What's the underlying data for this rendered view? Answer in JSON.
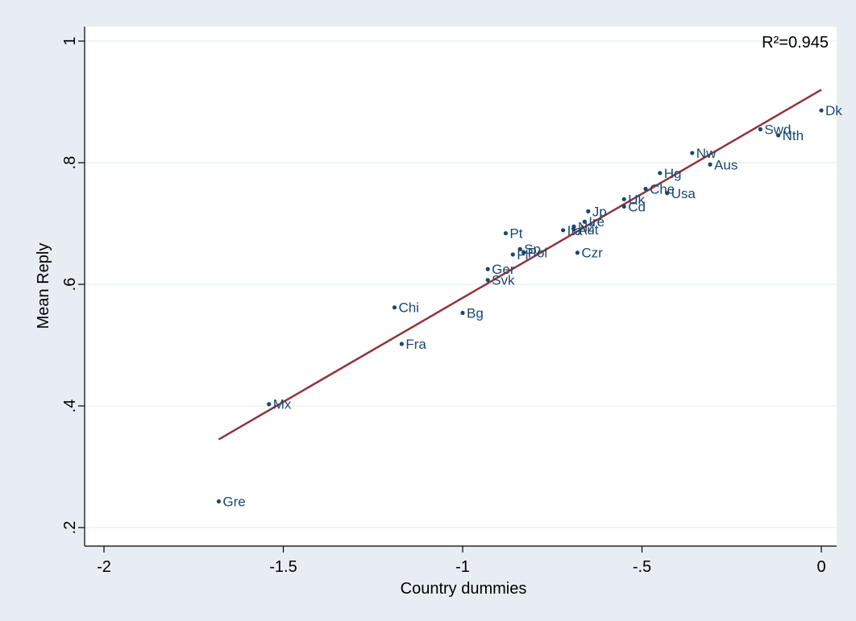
{
  "chart_data": {
    "type": "scatter",
    "xlabel": "Country dummies",
    "ylabel": "Mean Reply",
    "xlim": [
      -2,
      0
    ],
    "ylim": [
      0.2,
      1.0
    ],
    "xticks": [
      -2,
      -1.5,
      -1,
      -0.5,
      0
    ],
    "xtick_labels": [
      "-2",
      "-1.5",
      "-1",
      "-.5",
      "0"
    ],
    "yticks": [
      0.2,
      0.4,
      0.6,
      0.8,
      1.0
    ],
    "ytick_labels": [
      ".2",
      ".4",
      ".6",
      ".8",
      "1"
    ],
    "grid": true,
    "annotation": "R²=0.945",
    "fit_line": {
      "x": [
        -1.68,
        0
      ],
      "y": [
        0.345,
        0.92
      ]
    },
    "points": [
      {
        "label": "Dk",
        "x": 0.0,
        "y": 0.886
      },
      {
        "label": "Swd",
        "x": -0.17,
        "y": 0.855
      },
      {
        "label": "Nth",
        "x": -0.12,
        "y": 0.845
      },
      {
        "label": "Nw",
        "x": -0.36,
        "y": 0.816
      },
      {
        "label": "Aus",
        "x": -0.31,
        "y": 0.797
      },
      {
        "label": "Hg",
        "x": -0.45,
        "y": 0.783
      },
      {
        "label": "Che",
        "x": -0.49,
        "y": 0.757
      },
      {
        "label": "Usa",
        "x": -0.43,
        "y": 0.75
      },
      {
        "label": "Uk",
        "x": -0.55,
        "y": 0.74
      },
      {
        "label": "Cd",
        "x": -0.55,
        "y": 0.728
      },
      {
        "label": "Jp",
        "x": -0.65,
        "y": 0.72
      },
      {
        "label": "Ire",
        "x": -0.66,
        "y": 0.703
      },
      {
        "label": "Nz",
        "x": -0.69,
        "y": 0.695
      },
      {
        "label": "Aut",
        "x": -0.69,
        "y": 0.69
      },
      {
        "label": "Ita",
        "x": -0.72,
        "y": 0.689
      },
      {
        "label": "Pt",
        "x": -0.88,
        "y": 0.684
      },
      {
        "label": "Sp",
        "x": -0.84,
        "y": 0.658
      },
      {
        "label": "Pol",
        "x": -0.83,
        "y": 0.652
      },
      {
        "label": "Fl",
        "x": -0.86,
        "y": 0.649
      },
      {
        "label": "Czr",
        "x": -0.68,
        "y": 0.652
      },
      {
        "label": "Ger",
        "x": -0.93,
        "y": 0.625
      },
      {
        "label": "Svk",
        "x": -0.93,
        "y": 0.607
      },
      {
        "label": "Chi",
        "x": -1.19,
        "y": 0.562
      },
      {
        "label": "Bg",
        "x": -1.0,
        "y": 0.553
      },
      {
        "label": "Fra",
        "x": -1.17,
        "y": 0.502
      },
      {
        "label": "Mx",
        "x": -1.54,
        "y": 0.403
      },
      {
        "label": "Gre",
        "x": -1.68,
        "y": 0.243
      }
    ],
    "colors": {
      "background": "#e8edf4",
      "plot_bg": "#ffffff",
      "grid": "#eaf2f3",
      "marker": "#1a476f",
      "fit_line": "#90353b",
      "axis": "#000000"
    }
  }
}
